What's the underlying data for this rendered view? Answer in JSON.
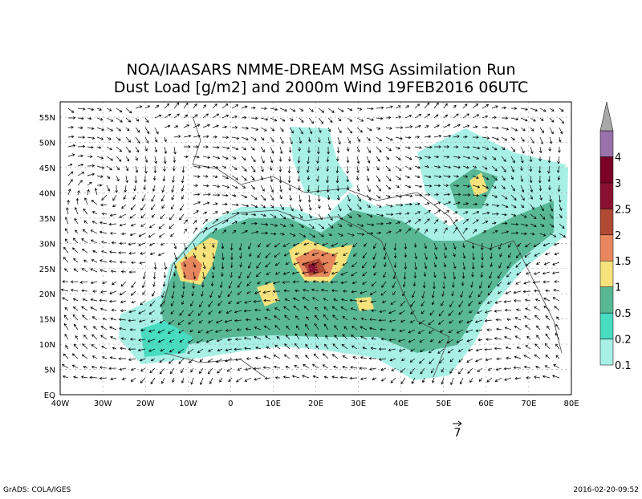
{
  "title": [
    "NOA/IAASARS NMME-DREAM MSG Assimilation Run",
    "Dust Load [g/m2] and 2000m Wind 19FEB2016 06UTC"
  ],
  "lat_labels": [
    "EQ",
    "5N",
    "10N",
    "15N",
    "20N",
    "25N",
    "30N",
    "35N",
    "40N",
    "45N",
    "50N",
    "55N"
  ],
  "lon_labels": [
    "40W",
    "30W",
    "20W",
    "10W",
    "0",
    "10E",
    "20E",
    "30E",
    "40E",
    "50E",
    "60E",
    "70E",
    "80E"
  ],
  "legend": {
    "levels": [
      0.1,
      0.2,
      0.5,
      1,
      1.5,
      2,
      2.5,
      3,
      4
    ],
    "colors": [
      "#a8f0e6",
      "#48dcc0",
      "#58b896",
      "#f5e27a",
      "#e8875e",
      "#b04a34",
      "#8a1030",
      "#7a0028",
      "#9a72aa",
      "#a8a8a8"
    ]
  },
  "wind_reference": "7",
  "footer": {
    "left": "GrADS: COLA/IGES",
    "right": "2016-02-20-09:52"
  }
}
